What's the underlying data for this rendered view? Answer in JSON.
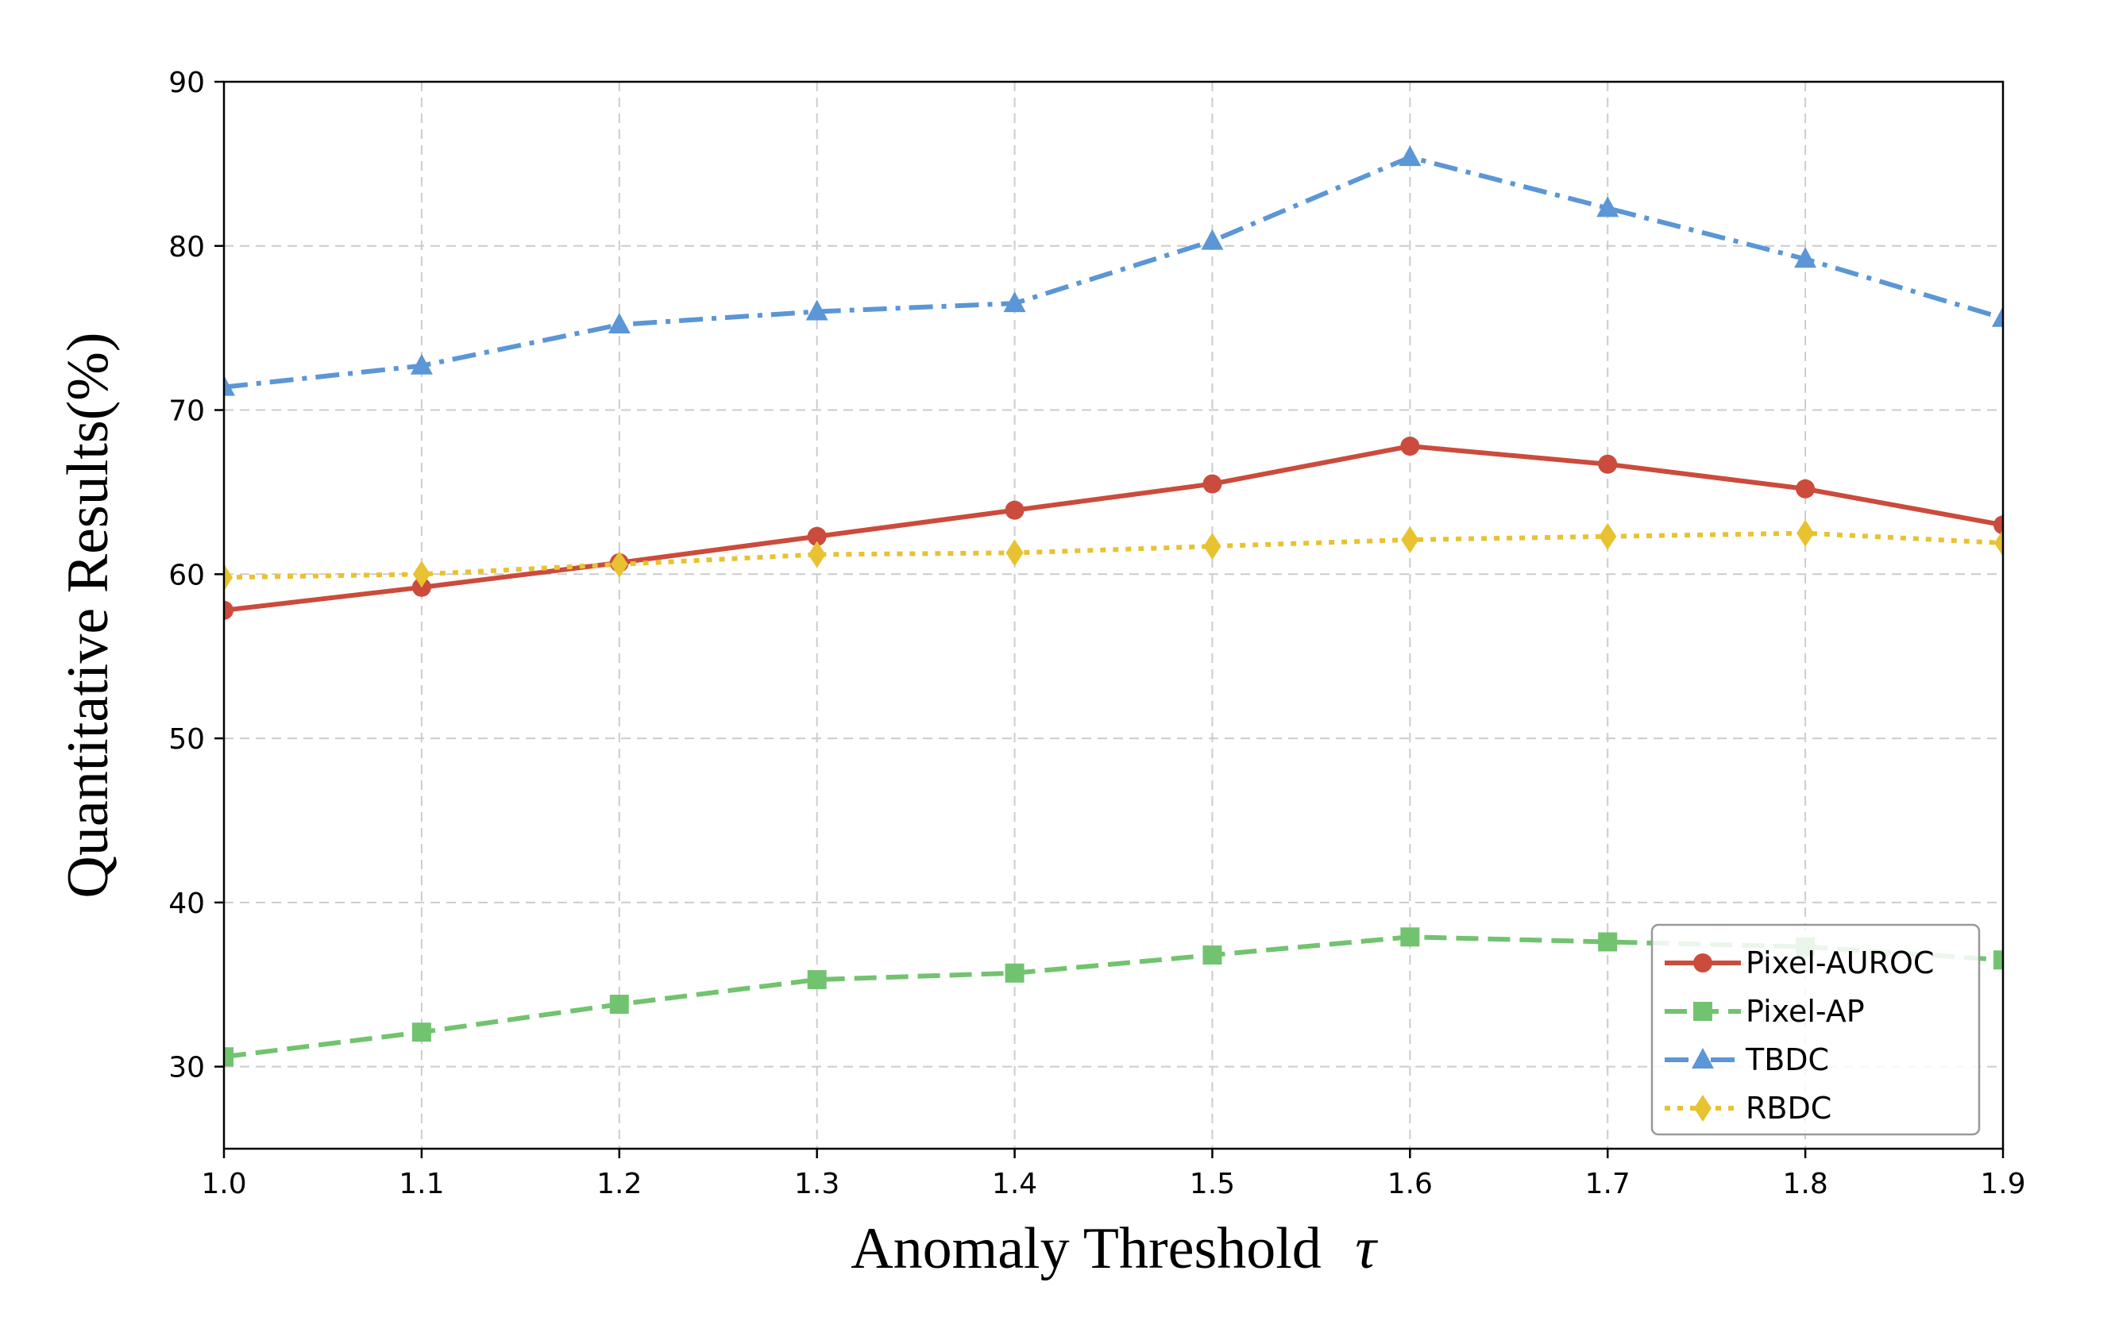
{
  "chart_data": {
    "type": "line",
    "title": "",
    "xlabel": "Anomaly Threshold",
    "xlabel_symbol": "τ",
    "ylabel": "Quantitative Results(%)",
    "x": [
      1.0,
      1.1,
      1.2,
      1.3,
      1.4,
      1.5,
      1.6,
      1.7,
      1.8,
      1.9
    ],
    "x_tick_labels": [
      "1.0",
      "1.1",
      "1.2",
      "1.3",
      "1.4",
      "1.5",
      "1.6",
      "1.7",
      "1.8",
      "1.9"
    ],
    "xlim": [
      1.0,
      1.9
    ],
    "ylim": [
      25,
      90
    ],
    "y_ticks": [
      30,
      40,
      50,
      60,
      70,
      80,
      90
    ],
    "y_tick_labels": [
      "30",
      "40",
      "50",
      "60",
      "70",
      "80",
      "90"
    ],
    "grid": true,
    "legend_position": "lower-right",
    "series": [
      {
        "name": "Pixel-AUROC",
        "color": "#cb4b3c",
        "line_style": "solid",
        "marker": "circle",
        "values": [
          57.8,
          59.2,
          60.7,
          62.3,
          63.9,
          65.5,
          67.8,
          66.7,
          65.2,
          63.0
        ]
      },
      {
        "name": "Pixel-AP",
        "color": "#72c36f",
        "line_style": "dashed",
        "marker": "square",
        "values": [
          30.6,
          32.1,
          33.8,
          35.3,
          35.7,
          36.8,
          37.9,
          37.6,
          37.3,
          36.5
        ]
      },
      {
        "name": "TBDC",
        "color": "#5b96d6",
        "line_style": "dashdot",
        "marker": "triangle",
        "values": [
          71.4,
          72.7,
          75.2,
          76.0,
          76.5,
          80.3,
          85.4,
          82.3,
          79.2,
          75.6
        ]
      },
      {
        "name": "RBDC",
        "color": "#e8c230",
        "line_style": "dotted",
        "marker": "diamond",
        "values": [
          59.8,
          60.0,
          60.6,
          61.2,
          61.3,
          61.7,
          62.1,
          62.3,
          62.5,
          61.9
        ]
      }
    ]
  }
}
